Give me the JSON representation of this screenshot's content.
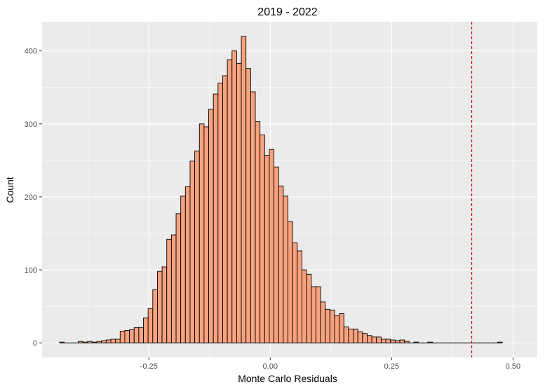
{
  "chart_data": {
    "type": "bar",
    "title": "2019 - 2022",
    "xlabel": "Monte Carlo Residuals",
    "ylabel": "Count",
    "xlim": [
      -0.47,
      0.55
    ],
    "ylim": [
      -20,
      440
    ],
    "x_ticks": [
      {
        "value": -0.25,
        "label": "-0.25"
      },
      {
        "value": 0.0,
        "label": "0.00"
      },
      {
        "value": 0.25,
        "label": "0.25"
      },
      {
        "value": 0.5,
        "label": "0.50"
      }
    ],
    "y_ticks": [
      {
        "value": 0,
        "label": "0"
      },
      {
        "value": 100,
        "label": "100"
      },
      {
        "value": 200,
        "label": "200"
      },
      {
        "value": 300,
        "label": "300"
      },
      {
        "value": 400,
        "label": "400"
      }
    ],
    "bin_width": 0.0096,
    "bin_start": -0.434,
    "counts": [
      1,
      0,
      0,
      0,
      2,
      1,
      2,
      1,
      2,
      3,
      4,
      5,
      5,
      16,
      17,
      18,
      21,
      21,
      34,
      47,
      73,
      98,
      104,
      142,
      148,
      177,
      201,
      214,
      249,
      263,
      300,
      296,
      320,
      341,
      356,
      366,
      388,
      400,
      383,
      420,
      376,
      344,
      303,
      285,
      257,
      265,
      241,
      215,
      201,
      166,
      137,
      126,
      100,
      94,
      77,
      77,
      56,
      46,
      45,
      37,
      40,
      22,
      19,
      19,
      15,
      13,
      10,
      8,
      8,
      5,
      5,
      4,
      3,
      4,
      2,
      0,
      1,
      0,
      0,
      1,
      0,
      0,
      0,
      0,
      0,
      0,
      0,
      0,
      0,
      0,
      0,
      0,
      0,
      0,
      1
    ],
    "vline": {
      "x": 0.415,
      "color": "#cc0000",
      "style": "dashed"
    },
    "colors": {
      "bar_fill": "#f9a27f",
      "bar_stroke": "#000000",
      "panel": "#ebebeb",
      "grid": "#ffffff"
    },
    "grid": true
  }
}
